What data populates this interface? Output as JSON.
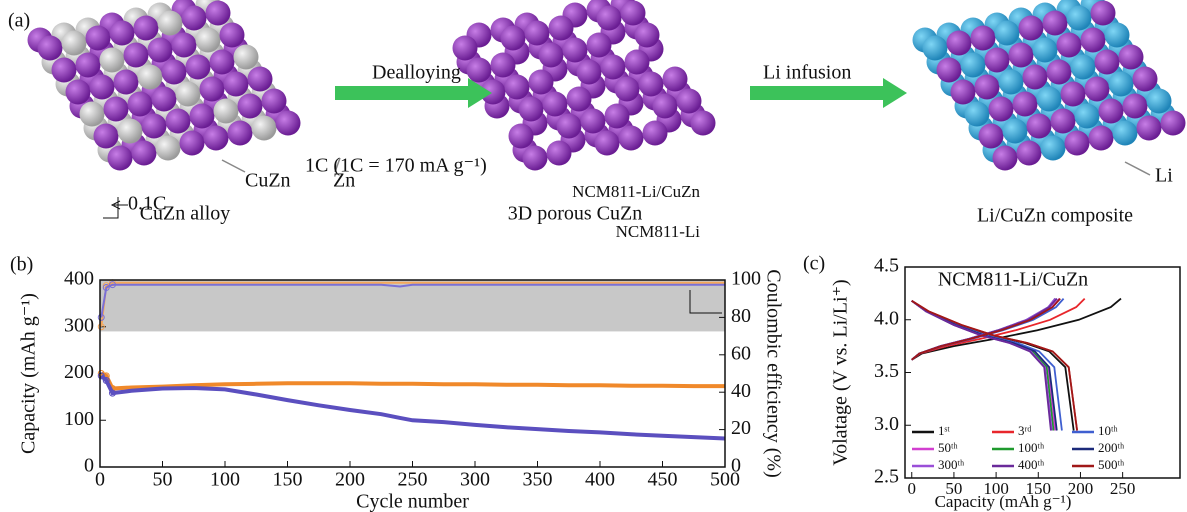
{
  "schematic": {
    "panel": "(a)",
    "step1": "Dealloying",
    "step2": "Li infusion",
    "label_cuzn": "CuZn",
    "label_zn": "Zn",
    "label_li": "Li",
    "caption1": "CuZn alloy",
    "caption2": "3D porous CuZn",
    "caption3": "Li/CuZn composite"
  },
  "chart_data": [
    {
      "type": "line",
      "panel": "(b)",
      "x_label": "Cycle number",
      "y_label": "Capacity (mAh g⁻¹)",
      "y2_label": "Coulombic efficiency (%)",
      "annotations": [
        "0.1C",
        "1C (1C = 170 mA g⁻¹)"
      ],
      "x": [
        1,
        5,
        10,
        25,
        50,
        75,
        100,
        125,
        150,
        175,
        200,
        225,
        240,
        250,
        275,
        300,
        325,
        350,
        375,
        400,
        425,
        450,
        475,
        500
      ],
      "xlim": [
        0,
        500
      ],
      "xticks": [
        0,
        50,
        100,
        150,
        200,
        250,
        300,
        350,
        400,
        450,
        500
      ],
      "ylim": [
        0,
        400
      ],
      "yticks": [
        0,
        100,
        200,
        300,
        400
      ],
      "y2lim": [
        0,
        100
      ],
      "y2ticks": [
        0,
        20,
        40,
        60,
        80,
        100
      ],
      "series": [
        {
          "name": "NCM811-Li/CuZn",
          "color": "#f0892a",
          "values": [
            200,
            195,
            168,
            170,
            172,
            175,
            177,
            178,
            179,
            179,
            179,
            178,
            178,
            178,
            177,
            177,
            176,
            176,
            175,
            175,
            174,
            174,
            173,
            173
          ]
        },
        {
          "name": "NCM811-Li",
          "color": "#5b4fbf",
          "values": [
            195,
            185,
            158,
            163,
            168,
            169,
            166,
            155,
            143,
            132,
            122,
            113,
            105,
            100,
            96,
            90,
            85,
            81,
            77,
            74,
            70,
            67,
            64,
            61
          ]
        },
        {
          "color": "#f6a85a",
          "axis": "y2",
          "values": [
            75,
            97,
            98.5,
            98.5,
            98.5,
            98.5,
            98.5,
            98.5,
            98.5,
            98.5,
            98.5,
            98.5,
            98.5,
            98.5,
            98.5,
            98.5,
            98.5,
            98.5,
            98.5,
            98.5,
            98.5,
            98.5,
            98.5,
            98.5
          ]
        },
        {
          "color": "#7a70d6",
          "axis": "y2",
          "values": [
            80,
            96,
            97.5,
            97.5,
            97.5,
            97.5,
            97.5,
            97.5,
            97.5,
            97.5,
            97.5,
            97.5,
            96.5,
            97.5,
            97.5,
            97.5,
            97.5,
            97.5,
            97.5,
            97.5,
            97.5,
            97.5,
            97.5,
            97.5
          ]
        }
      ]
    },
    {
      "type": "line",
      "panel": "(c)",
      "title": "NCM811-Li/CuZn",
      "x_label": "Capacity (mAh g⁻¹)",
      "y_label": "Volatage (V vs. Li/Li⁺)",
      "xlim": [
        -8,
        318
      ],
      "xticks": [
        0,
        50,
        100,
        150,
        200,
        250
      ],
      "ylim": [
        2.5,
        4.5
      ],
      "yticks": [
        2.5,
        {
          "value": 3,
          "label": "3.0"
        },
        3.5,
        {
          "value": 4,
          "label": "4.0"
        },
        4.5
      ],
      "series": [
        {
          "name": "1ˢᵗ",
          "color": "#111111",
          "x": [
            0,
            12,
            50,
            99,
            149,
            198,
            236,
            248,
            null,
            0,
            19,
            58,
            96,
            134,
            163,
            182,
            192
          ],
          "values": [
            3.62,
            3.68,
            3.75,
            3.82,
            3.9,
            4.0,
            4.12,
            4.2,
            null,
            4.18,
            4.08,
            3.95,
            3.85,
            3.78,
            3.7,
            3.55,
            2.95
          ]
        },
        {
          "name": "3ʳᵈ",
          "color": "#e8262b",
          "x": [
            0,
            10,
            41,
            82,
            123,
            164,
            195,
            205,
            null,
            0,
            20,
            59,
            98,
            137,
            167,
            186,
            196
          ],
          "values": [
            3.62,
            3.68,
            3.75,
            3.82,
            3.9,
            4.0,
            4.12,
            4.2,
            null,
            4.18,
            4.08,
            3.95,
            3.85,
            3.78,
            3.7,
            3.55,
            2.95
          ]
        },
        {
          "name": "10ᵗʰ",
          "color": "#3f5fd0",
          "x": [
            0,
            9,
            36,
            72,
            108,
            144,
            171,
            180,
            null,
            0,
            18,
            53,
            89,
            125,
            151,
            169,
            178
          ],
          "values": [
            3.62,
            3.68,
            3.75,
            3.82,
            3.9,
            4.0,
            4.12,
            4.2,
            null,
            4.18,
            4.08,
            3.95,
            3.85,
            3.78,
            3.7,
            3.55,
            2.95
          ]
        },
        {
          "name": "50ᵗʰ",
          "color": "#d23fd0",
          "x": [
            0,
            9,
            35,
            70,
            105,
            140,
            166,
            175,
            null,
            0,
            17,
            51,
            85,
            119,
            145,
            162,
            170
          ],
          "values": [
            3.62,
            3.68,
            3.75,
            3.82,
            3.9,
            4.0,
            4.12,
            4.2,
            null,
            4.18,
            4.08,
            3.95,
            3.85,
            3.78,
            3.7,
            3.55,
            2.95
          ]
        },
        {
          "name": "100ᵗʰ",
          "color": "#1f9a2e",
          "x": [
            0,
            9,
            34,
            69,
            103,
            138,
            163,
            172,
            null,
            0,
            17,
            50,
            84,
            118,
            143,
            160,
            168
          ],
          "values": [
            3.62,
            3.68,
            3.75,
            3.82,
            3.9,
            4.0,
            4.12,
            4.2,
            null,
            4.18,
            4.08,
            3.95,
            3.85,
            3.78,
            3.7,
            3.55,
            2.95
          ]
        },
        {
          "name": "200ᵗʰ",
          "color": "#1c2a7a",
          "x": [
            0,
            9,
            34,
            68,
            102,
            136,
            162,
            170,
            null,
            0,
            17,
            52,
            86,
            120,
            146,
            163,
            172
          ],
          "values": [
            3.62,
            3.68,
            3.75,
            3.82,
            3.9,
            4.0,
            4.12,
            4.2,
            null,
            4.18,
            4.08,
            3.95,
            3.85,
            3.78,
            3.7,
            3.55,
            2.95
          ]
        },
        {
          "name": "300ᵗʰ",
          "color": "#9a4fd8",
          "x": [
            0,
            9,
            34,
            68,
            102,
            136,
            162,
            170,
            null,
            0,
            17,
            50,
            83,
            116,
            141,
            158,
            166
          ],
          "values": [
            3.62,
            3.68,
            3.75,
            3.82,
            3.9,
            4.0,
            4.12,
            4.2,
            null,
            4.18,
            4.08,
            3.95,
            3.85,
            3.78,
            3.7,
            3.55,
            2.95
          ]
        },
        {
          "name": "400ᵗʰ",
          "color": "#6a2a9a",
          "x": [
            0,
            9,
            34,
            69,
            103,
            138,
            163,
            172,
            null,
            0,
            17,
            50,
            83,
            116,
            140,
            157,
            165
          ],
          "values": [
            3.62,
            3.68,
            3.75,
            3.82,
            3.9,
            4.0,
            4.12,
            4.2,
            null,
            4.18,
            4.08,
            3.95,
            3.85,
            3.78,
            3.7,
            3.55,
            2.95
          ]
        },
        {
          "name": "500ᵗʰ",
          "color": "#a01818",
          "x": [
            0,
            9,
            35,
            70,
            106,
            141,
            167,
            176,
            null,
            0,
            20,
            59,
            98,
            137,
            167,
            186,
            196
          ],
          "values": [
            3.62,
            3.68,
            3.75,
            3.82,
            3.9,
            4.0,
            4.12,
            4.2,
            null,
            4.18,
            4.08,
            3.95,
            3.85,
            3.78,
            3.7,
            3.55,
            2.95
          ]
        }
      ]
    }
  ]
}
